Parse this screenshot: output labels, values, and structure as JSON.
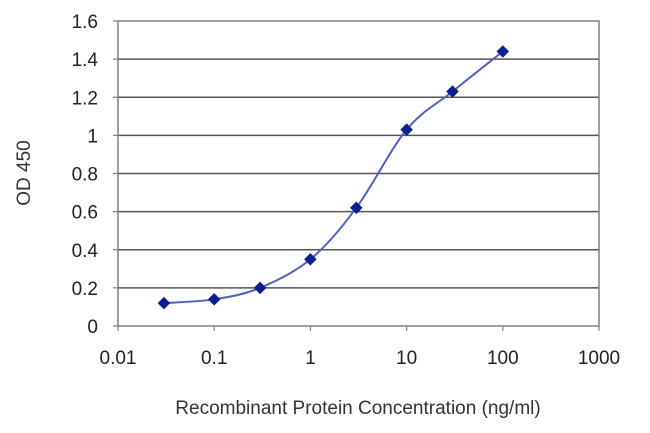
{
  "chart_data": {
    "type": "line",
    "title": "",
    "xlabel": "Recombinant Protein Concentration (ng/ml)",
    "ylabel": "OD 450",
    "x_scale": "log",
    "xlim": [
      0.01,
      1000
    ],
    "ylim": [
      0,
      1.6
    ],
    "x_ticks": [
      "0.01",
      "0.1",
      "1",
      "10",
      "100",
      "1000"
    ],
    "y_ticks": [
      "0",
      "0.2",
      "0.4",
      "0.6",
      "0.8",
      "1",
      "1.2",
      "1.4",
      "1.6"
    ],
    "grid": "horizontal",
    "legend": "none",
    "series": [
      {
        "color": "#0b1f8f",
        "x": [
          0.03,
          0.1,
          0.3,
          1,
          3,
          10,
          30,
          100
        ],
        "y": [
          0.12,
          0.14,
          0.2,
          0.35,
          0.62,
          1.03,
          1.23,
          1.44
        ]
      }
    ]
  }
}
